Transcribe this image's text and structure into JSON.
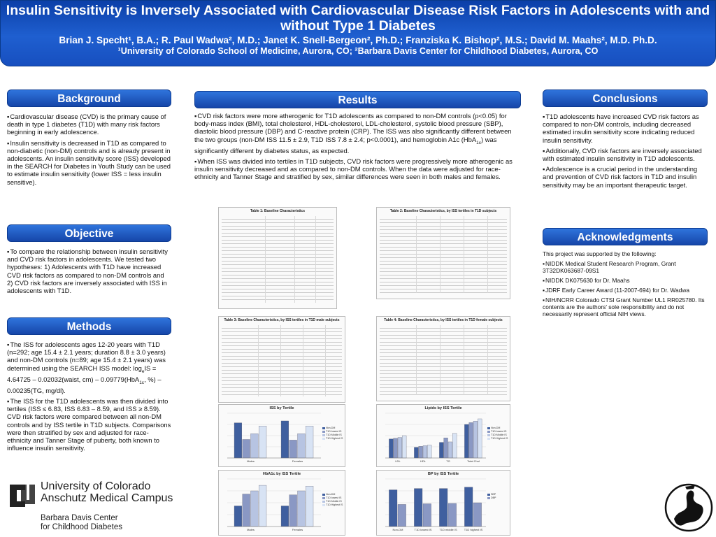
{
  "banner": {
    "title": "Insulin Sensitivity is Inversely Associated with Cardiovascular Disease Risk Factors in Adolescents with and without Type 1 Diabetes",
    "authors": "Brian J. Specht¹, B.A.; R. Paul Wadwa², M.D.; Janet K. Snell-Bergeon², Ph.D.; Franziska K. Bishop², M.S.; David M. Maahs², M.D. Ph.D.",
    "affiliation": "¹University of Colorado School of Medicine, Aurora, CO; ²Barbara Davis Center for Childhood Diabetes, Aurora, CO"
  },
  "background": {
    "heading": "Background",
    "p1": "Cardiovascular disease (CVD) is the primary cause of death in type 1 diabetes (T1D) with many risk factors beginning in early adolescence.",
    "p2": "Insulin sensitivity is decreased in T1D as compared to non-diabetic (non-DM) controls and is already present in adolescents.  An insulin sensitivity score (ISS) developed in the SEARCH for Diabetes in Youth Study can be used to estimate insulin sensitivity (lower ISS = less insulin sensitive)."
  },
  "objective": {
    "heading": "Objective",
    "p1": "To compare the relationship between insulin sensitivity and CVD risk factors in adolescents. We tested two hypotheses: 1) Adolescents with T1D have increased CVD risk factors as compared to non-DM controls and 2) CVD risk factors are inversely associated with ISS in adolescents with T1D."
  },
  "methods": {
    "heading": "Methods",
    "p1a": "The ISS for adolescents ages 12-20 years with T1D (n=292; age 15.4 ± 2.1 years; duration 8.8 ± 3.0 years) and non-DM controls (n=89; age 15.4 ± 2.1 years) was determined using the SEARCH ISS model: log",
    "p1sub1": "e",
    "p1b": "IS = 4.64725 – 0.02032(waist, cm) – 0.09779(HbA",
    "p1sub2": "1c",
    "p1c": ", %) – 0.00235(TG, mg/dl).",
    "p2": "The ISS for the T1D adolescents was then divided into tertiles (ISS ≤ 6.83, ISS 6.83 – 8.59, and ISS ≥ 8.59). CVD risk factors were compared between all non-DM controls and by ISS tertile in T1D subjects.  Comparisons were then stratified by sex and adjusted for race-ethnicity and Tanner Stage of puberty, both known to influence insulin sensitivity."
  },
  "results": {
    "heading": "Results",
    "p1a": "CVD risk factors were more atherogenic for T1D adolescents as compared to non-DM controls (p<0.05) for body-mass index (BMI), total cholesterol, HDL-cholesterol, LDL-cholesterol, systolic blood pressure (SBP), diastolic blood pressure (DBP) and C-reactive protein (CRP).  The ISS was also significantly different between the two groups (non-DM ISS 11.5 ± 2.9, T1D ISS 7.8 ± 2.4; p<0.0001), and hemoglobin A1c (HbA",
    "p1sub": "1c",
    "p1b": ") was significantly different by diabetes status, as expected.",
    "p2": "When ISS was divided into tertiles in T1D subjects, CVD risk factors were progressively more atherogenic as insulin sensitivity decreased and as compared to non-DM controls.  When the data were adjusted for race-ethnicity and Tanner Stage and stratified by sex, similar differences were seen in both males and females.",
    "table1": "Table 1: Baseline Characteristics",
    "table2": "Table 2: Baseline Characteristics, by ISS tertiles in T1D subjects",
    "table3": "Table 3: Baseline Characteristics, by ISS tertiles in T1D male subjects",
    "table4": "Table 4: Baseline Characteristics, by ISS tertiles in T1D female subjects"
  },
  "conclusions": {
    "heading": "Conclusions",
    "p1": "T1D adolescents have increased CVD risk factors as compared to non-DM controls, including decreased estimated insulin sensitivity score indicating reduced insulin sensitivity.",
    "p2": "Additionally, CVD risk factors are inversely associated with estimated insulin sensitivity in T1D adolescents.",
    "p3": "Adolescence is a crucial period in the understanding and prevention of CVD risk factors in T1D and insulin sensitivity may be an important therapeutic target."
  },
  "acknowledgments": {
    "heading": "Acknowledgments",
    "intro": "This project was supported by the following:",
    "items": [
      "NIDDK Medical Student Research Program, Grant 3T32DK063687-09S1",
      "NIDDK DK075630 for Dr. Maahs",
      "JDRF Early Career Award (11-2007-694) for Dr. Wadwa",
      "NIH/NCRR Colorado CTSI Grant Number UL1 RR025780. Its contents are the authors' sole responsibility and do not necessarily represent official NIH views."
    ]
  },
  "logo": {
    "univ1": "University of Colorado",
    "univ2": "Anschutz Medical Campus",
    "bdc1": "Barbara Davis Center",
    "bdc2": "for Childhood Diabetes"
  },
  "colors": {
    "banner": "#1f5fd0",
    "header": "#1e55bf",
    "series": [
      "#3f5f9f",
      "#8a98c4",
      "#b7c4e2",
      "#d8e3f4"
    ]
  },
  "chart_data": [
    {
      "type": "bar",
      "title": "ISS by Tertile",
      "categories": [
        "Males",
        "Females"
      ],
      "series": [
        {
          "name": "Non-DM",
          "values": [
            11.0,
            11.6
          ]
        },
        {
          "name": "T1D lowest IS",
          "values": [
            5.8,
            5.6
          ]
        },
        {
          "name": "T1D Middle IS",
          "values": [
            7.6,
            7.6
          ]
        },
        {
          "name": "T1D Highest IS",
          "values": [
            10.0,
            10.0
          ]
        }
      ],
      "ylim": [
        0,
        14
      ]
    },
    {
      "type": "bar",
      "title": "Lipids by ISS Tertile",
      "categories": [
        "LDL",
        "HDL",
        "TG",
        "Total Chol"
      ],
      "series": [
        {
          "name": "Non-DM",
          "values": [
            85,
            48,
            70,
            150
          ]
        },
        {
          "name": "T1D lowest IS",
          "values": [
            88,
            52,
            90,
            158
          ]
        },
        {
          "name": "T1D Middle IS",
          "values": [
            92,
            55,
            72,
            165
          ]
        },
        {
          "name": "T1D Highest IS",
          "values": [
            100,
            58,
            110,
            175
          ]
        }
      ],
      "ylim": [
        0,
        200
      ]
    },
    {
      "type": "bar",
      "title": "HbA1c by ISS Tertile",
      "categories": [
        "Males",
        "Females"
      ],
      "series": [
        {
          "name": "Non-DM",
          "values": [
            5.2,
            5.2
          ]
        },
        {
          "name": "T1D lowest IS",
          "values": [
            8.2,
            8.0
          ]
        },
        {
          "name": "T1D Middle IS",
          "values": [
            9.0,
            9.0
          ]
        },
        {
          "name": "T1D Highest IS",
          "values": [
            10.4,
            10.2
          ]
        }
      ],
      "ylim": [
        0,
        12
      ]
    },
    {
      "type": "bar",
      "title": "BP by ISS Tertile",
      "categories": [
        "Non-DM",
        "T1D lowest IS",
        "T1D middle IS",
        "T1D highest IS"
      ],
      "series": [
        {
          "name": "SBP",
          "values": [
            108,
            112,
            112,
            116
          ]
        },
        {
          "name": "DBP",
          "values": [
            65,
            67,
            68,
            70
          ]
        }
      ],
      "ylim": [
        0,
        140
      ]
    }
  ]
}
